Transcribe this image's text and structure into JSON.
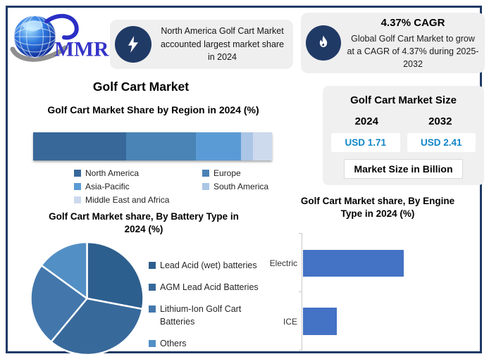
{
  "brand": {
    "name": "MMR"
  },
  "theme": {
    "accent_navy": "#1e3a66",
    "panel_gray": "#efefef",
    "value_blue": "#0f86c8",
    "bar_blue": "#4472c4"
  },
  "callout_na": {
    "text": "North America Golf Cart Market accounted largest market share in 2024"
  },
  "callout_cagr": {
    "title": "4.37% CAGR",
    "body": "Global Golf Cart Market to grow at a CAGR of 4.37% during 2025-2032"
  },
  "main_title": "Golf Cart Market",
  "market_size": {
    "title": "Golf Cart Market Size",
    "year_left": "2024",
    "year_right": "2032",
    "value_left": "USD 1.71",
    "value_right": "USD 2.41",
    "note": "Market Size in Billion"
  },
  "chart_data": [
    {
      "id": "region",
      "type": "bar",
      "subtype": "stacked-horizontal",
      "title": "Golf Cart Market Share by Region in 2024 (%)",
      "categories": [
        "North America",
        "Europe",
        "Asia-Pacific",
        "South America",
        "Middle East and Africa"
      ],
      "values": [
        39,
        29,
        19,
        5,
        8
      ],
      "unit": "%",
      "colors": [
        "#38689a",
        "#4a83b5",
        "#5b9bd5",
        "#abc5e6",
        "#cdd9ed"
      ],
      "legend_position": "bottom",
      "grid": false
    },
    {
      "id": "battery",
      "type": "pie",
      "title": "Golf Cart Market share, By Battery Type in 2024 (%)",
      "categories": [
        "Lead Acid (wet) batteries",
        "AGM Lead Acid Batteries",
        "Lithium-Ion Golf Cart Batteries",
        "Others"
      ],
      "values": [
        28,
        33,
        24,
        15
      ],
      "unit": "%",
      "colors": [
        "#2d5f8e",
        "#38699b",
        "#4377ac",
        "#528fc5"
      ],
      "legend_position": "right",
      "start_angle_deg": 0
    },
    {
      "id": "engine",
      "type": "bar",
      "subtype": "horizontal",
      "title": "Golf Cart Market share, By Engine Type in 2024 (%)",
      "categories": [
        "Electric",
        "ICE"
      ],
      "values": [
        75,
        25
      ],
      "unit": "%",
      "xlim": [
        0,
        130
      ],
      "color": "#4472c4",
      "grid": false,
      "legend_position": "none"
    }
  ]
}
